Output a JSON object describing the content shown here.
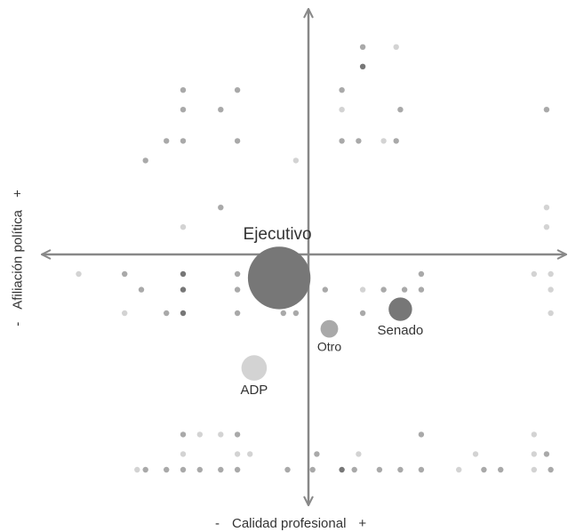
{
  "chart_data": {
    "type": "scatter",
    "title": "",
    "xlabel": "Calidad profesional",
    "ylabel": "Afiliación política",
    "x_axis_signs": {
      "negative": "-",
      "positive": "+"
    },
    "y_axis_signs": {
      "negative": "-",
      "positive": "+"
    },
    "xlim": [
      -6,
      6
    ],
    "ylim": [
      -6,
      6
    ],
    "grid": false,
    "legend": "none",
    "colors": {
      "axis": "#888888",
      "dark": "#777777",
      "mid": "#a9a9a9",
      "light": "#d3d3d3"
    },
    "bubbles": [
      {
        "label": "Ejecutivo",
        "x": -0.7,
        "y": -0.6,
        "size": 3.2,
        "shade": "dark"
      },
      {
        "label": "Senado",
        "x": 2.2,
        "y": -1.4,
        "size": 1.2,
        "shade": "dark"
      },
      {
        "label": "Otro",
        "x": 0.5,
        "y": -1.9,
        "size": 0.9,
        "shade": "mid"
      },
      {
        "label": "ADP",
        "x": -1.3,
        "y": -2.9,
        "size": 1.3,
        "shade": "light"
      }
    ],
    "points": [
      {
        "x": 1.3,
        "y": 5.3,
        "shade": "mid"
      },
      {
        "x": 2.1,
        "y": 5.3,
        "shade": "light"
      },
      {
        "x": 1.3,
        "y": 4.8,
        "shade": "dark"
      },
      {
        "x": -3.0,
        "y": 4.2,
        "shade": "mid"
      },
      {
        "x": -1.7,
        "y": 4.2,
        "shade": "mid"
      },
      {
        "x": 0.8,
        "y": 4.2,
        "shade": "mid"
      },
      {
        "x": -3.0,
        "y": 3.7,
        "shade": "mid"
      },
      {
        "x": -2.1,
        "y": 3.7,
        "shade": "mid"
      },
      {
        "x": 0.8,
        "y": 3.7,
        "shade": "light"
      },
      {
        "x": 2.2,
        "y": 3.7,
        "shade": "mid"
      },
      {
        "x": 5.7,
        "y": 3.7,
        "shade": "mid"
      },
      {
        "x": -3.4,
        "y": 2.9,
        "shade": "mid"
      },
      {
        "x": -3.0,
        "y": 2.9,
        "shade": "mid"
      },
      {
        "x": -1.7,
        "y": 2.9,
        "shade": "mid"
      },
      {
        "x": 0.8,
        "y": 2.9,
        "shade": "mid"
      },
      {
        "x": 1.2,
        "y": 2.9,
        "shade": "mid"
      },
      {
        "x": 1.8,
        "y": 2.9,
        "shade": "light"
      },
      {
        "x": 2.1,
        "y": 2.9,
        "shade": "mid"
      },
      {
        "x": -3.9,
        "y": 2.4,
        "shade": "mid"
      },
      {
        "x": -0.3,
        "y": 2.4,
        "shade": "light"
      },
      {
        "x": -2.1,
        "y": 1.2,
        "shade": "mid"
      },
      {
        "x": 5.7,
        "y": 1.2,
        "shade": "light"
      },
      {
        "x": -3.0,
        "y": 0.7,
        "shade": "light"
      },
      {
        "x": 5.7,
        "y": 0.7,
        "shade": "light"
      },
      {
        "x": -5.5,
        "y": -0.5,
        "shade": "light"
      },
      {
        "x": -4.4,
        "y": -0.5,
        "shade": "mid"
      },
      {
        "x": -3.0,
        "y": -0.5,
        "shade": "dark"
      },
      {
        "x": -1.7,
        "y": -0.5,
        "shade": "mid"
      },
      {
        "x": 2.7,
        "y": -0.5,
        "shade": "mid"
      },
      {
        "x": 5.4,
        "y": -0.5,
        "shade": "light"
      },
      {
        "x": 5.8,
        "y": -0.5,
        "shade": "light"
      },
      {
        "x": -4.0,
        "y": -0.9,
        "shade": "mid"
      },
      {
        "x": -3.0,
        "y": -0.9,
        "shade": "dark"
      },
      {
        "x": -1.7,
        "y": -0.9,
        "shade": "mid"
      },
      {
        "x": 0.4,
        "y": -0.9,
        "shade": "mid"
      },
      {
        "x": 1.3,
        "y": -0.9,
        "shade": "light"
      },
      {
        "x": 1.8,
        "y": -0.9,
        "shade": "mid"
      },
      {
        "x": 2.3,
        "y": -0.9,
        "shade": "mid"
      },
      {
        "x": 2.7,
        "y": -0.9,
        "shade": "mid"
      },
      {
        "x": 5.8,
        "y": -0.9,
        "shade": "light"
      },
      {
        "x": -4.4,
        "y": -1.5,
        "shade": "light"
      },
      {
        "x": -3.4,
        "y": -1.5,
        "shade": "mid"
      },
      {
        "x": -3.0,
        "y": -1.5,
        "shade": "dark"
      },
      {
        "x": -1.7,
        "y": -1.5,
        "shade": "mid"
      },
      {
        "x": -0.6,
        "y": -1.5,
        "shade": "mid"
      },
      {
        "x": -0.3,
        "y": -1.5,
        "shade": "mid"
      },
      {
        "x": 1.3,
        "y": -1.5,
        "shade": "mid"
      },
      {
        "x": 5.8,
        "y": -1.5,
        "shade": "light"
      },
      {
        "x": -3.0,
        "y": -4.6,
        "shade": "mid"
      },
      {
        "x": -2.6,
        "y": -4.6,
        "shade": "light"
      },
      {
        "x": -2.1,
        "y": -4.6,
        "shade": "light"
      },
      {
        "x": -1.7,
        "y": -4.6,
        "shade": "mid"
      },
      {
        "x": 2.7,
        "y": -4.6,
        "shade": "mid"
      },
      {
        "x": 5.4,
        "y": -4.6,
        "shade": "light"
      },
      {
        "x": -3.0,
        "y": -5.1,
        "shade": "light"
      },
      {
        "x": -1.7,
        "y": -5.1,
        "shade": "light"
      },
      {
        "x": -1.4,
        "y": -5.1,
        "shade": "light"
      },
      {
        "x": 0.2,
        "y": -5.1,
        "shade": "mid"
      },
      {
        "x": 1.2,
        "y": -5.1,
        "shade": "light"
      },
      {
        "x": 4.0,
        "y": -5.1,
        "shade": "light"
      },
      {
        "x": 5.4,
        "y": -5.1,
        "shade": "light"
      },
      {
        "x": 5.7,
        "y": -5.1,
        "shade": "mid"
      },
      {
        "x": -4.1,
        "y": -5.5,
        "shade": "light"
      },
      {
        "x": -3.9,
        "y": -5.5,
        "shade": "mid"
      },
      {
        "x": -3.4,
        "y": -5.5,
        "shade": "mid"
      },
      {
        "x": -3.0,
        "y": -5.5,
        "shade": "mid"
      },
      {
        "x": -2.6,
        "y": -5.5,
        "shade": "mid"
      },
      {
        "x": -2.1,
        "y": -5.5,
        "shade": "mid"
      },
      {
        "x": -1.7,
        "y": -5.5,
        "shade": "mid"
      },
      {
        "x": -0.5,
        "y": -5.5,
        "shade": "mid"
      },
      {
        "x": 0.1,
        "y": -5.5,
        "shade": "mid"
      },
      {
        "x": 0.8,
        "y": -5.5,
        "shade": "dark"
      },
      {
        "x": 1.1,
        "y": -5.5,
        "shade": "mid"
      },
      {
        "x": 1.7,
        "y": -5.5,
        "shade": "mid"
      },
      {
        "x": 2.2,
        "y": -5.5,
        "shade": "mid"
      },
      {
        "x": 2.7,
        "y": -5.5,
        "shade": "mid"
      },
      {
        "x": 3.6,
        "y": -5.5,
        "shade": "light"
      },
      {
        "x": 4.2,
        "y": -5.5,
        "shade": "mid"
      },
      {
        "x": 4.6,
        "y": -5.5,
        "shade": "mid"
      },
      {
        "x": 5.4,
        "y": -5.5,
        "shade": "light"
      },
      {
        "x": 5.8,
        "y": -5.5,
        "shade": "mid"
      }
    ]
  }
}
